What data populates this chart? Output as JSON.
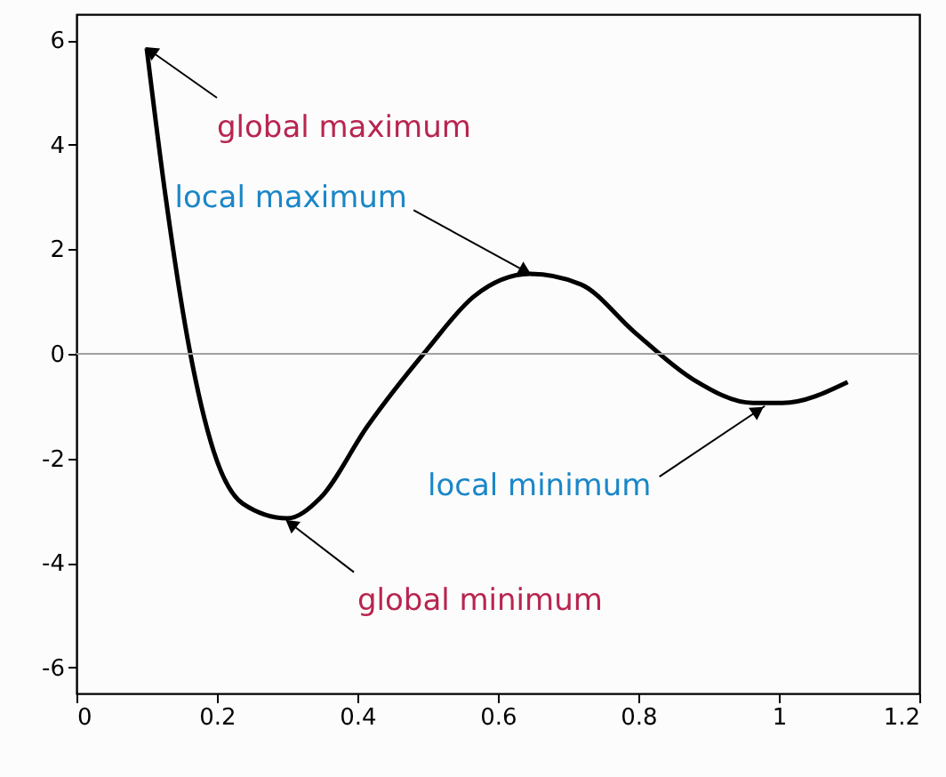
{
  "chart_data": {
    "type": "line",
    "x": [
      0.1,
      0.127,
      0.161,
      0.195,
      0.237,
      0.3,
      0.347,
      0.414,
      0.499,
      0.566,
      0.646,
      0.718,
      0.794,
      0.878,
      0.963,
      1.005,
      1.098
    ],
    "series": [
      {
        "color": "#000000",
        "values": [
          5.85,
          3.0,
          0.08,
          -1.85,
          -2.87,
          -3.15,
          -2.76,
          -1.39,
          0.08,
          1.1,
          1.53,
          1.33,
          0.42,
          -0.49,
          -0.94,
          -0.94,
          -0.54
        ]
      }
    ],
    "xlim": [
      0,
      1.2
    ],
    "xticks": [
      0,
      0.2,
      0.4,
      0.6,
      0.8,
      1,
      1.2
    ],
    "ylim": [
      -6.5,
      6.5
    ],
    "yticks": [
      -6,
      -4,
      -2,
      0,
      2,
      4,
      6
    ],
    "grid": false,
    "marker": "none",
    "line_style": "solid",
    "ref_lines": [
      {
        "axis": "y",
        "value": 0,
        "color": "#a0a0a0"
      }
    ],
    "annotations": [
      {
        "text": "global maximum",
        "x": 0.1,
        "y": 5.85
      },
      {
        "text": "local maximum",
        "x": 0.65,
        "y": 1.5
      },
      {
        "text": "local minimum",
        "x": 0.98,
        "y": -1.0
      },
      {
        "text": "global minimum",
        "x": 0.3,
        "y": -3.2
      }
    ]
  }
}
